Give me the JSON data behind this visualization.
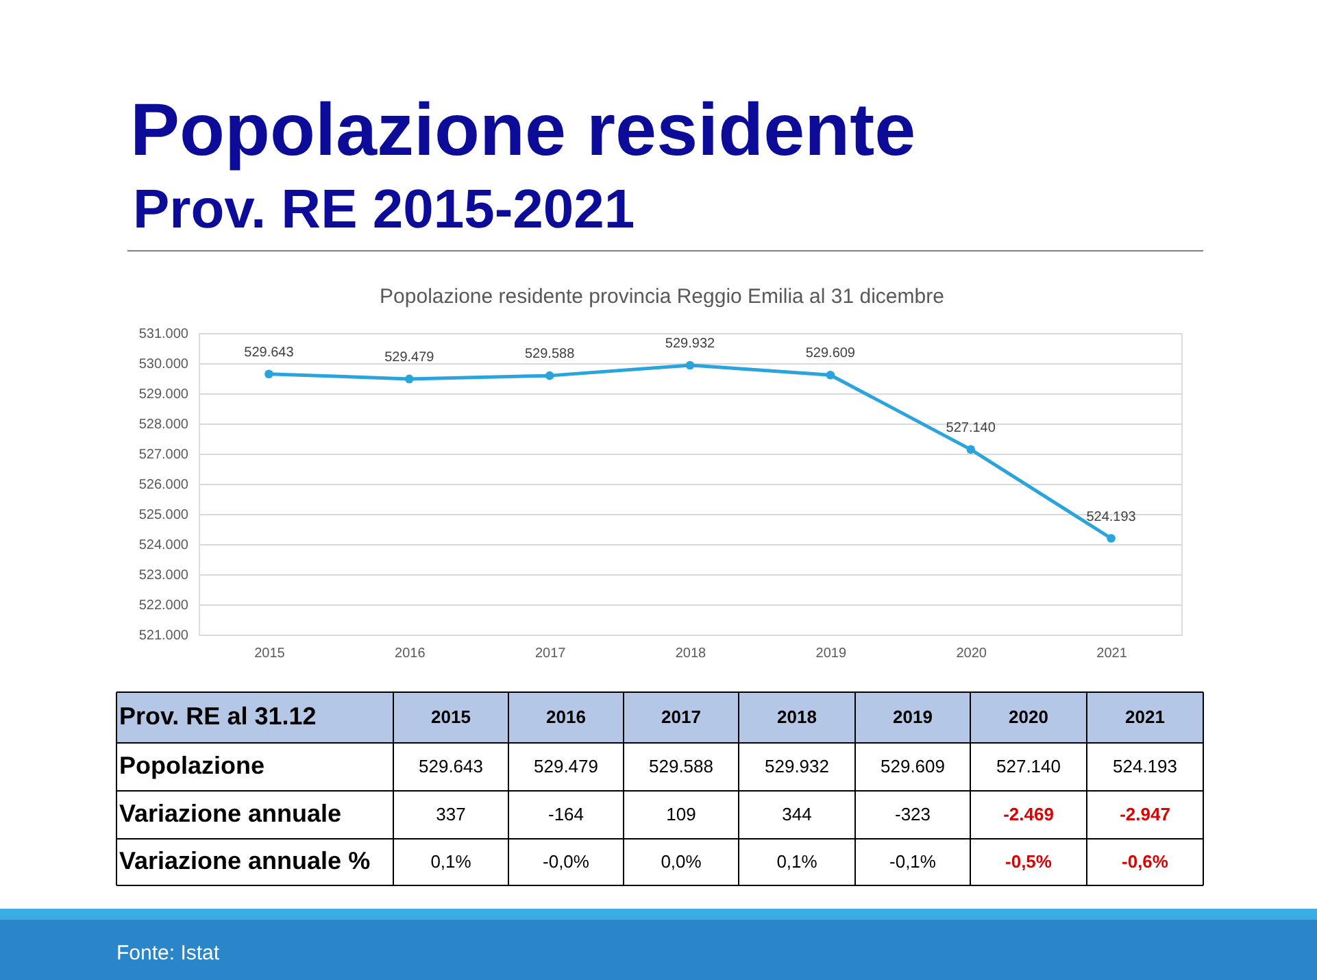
{
  "chart_data": {
    "type": "line",
    "title": "Popolazione residente",
    "subtitle": "Prov. RE  2015-2021",
    "categories": [
      "2015",
      "2016",
      "2017",
      "2018",
      "2019",
      "2020",
      "2021"
    ],
    "series": [
      {
        "color": "#2aa4dc",
        "values": [
          529643,
          529479,
          529588,
          529932,
          529609,
          527140,
          524193
        ]
      }
    ],
    "value_labels": [
      "529.643",
      "529.479",
      "529.588",
      "529.932",
      "529.609",
      "527.140",
      "524.193"
    ],
    "ylim": [
      521000,
      531000
    ],
    "yticks": [
      {
        "value": 521000,
        "label": "521.000"
      },
      {
        "value": 522000,
        "label": "522.000"
      },
      {
        "value": 523000,
        "label": "523.000"
      },
      {
        "value": 524000,
        "label": "524.000"
      },
      {
        "value": 525000,
        "label": "525.000"
      },
      {
        "value": 526000,
        "label": "526.000"
      },
      {
        "value": 527000,
        "label": "527.000"
      },
      {
        "value": 528000,
        "label": "528.000"
      },
      {
        "value": 529000,
        "label": "529.000"
      },
      {
        "value": 530000,
        "label": "530.000"
      },
      {
        "value": 531000,
        "label": "531.000"
      }
    ],
    "grid": "y",
    "marker": "circle",
    "line_style": "solid",
    "legend": false,
    "annotations": [
      "Popolazione residente provincia Reggio Emilia al 31 dicembre",
      "Prov. RE al 31.12",
      "Popolazione",
      "Variazione annuale",
      "Variazione annuale %",
      "337",
      "-164",
      "109",
      "344",
      "-323",
      "-2.469",
      "-2.947",
      "0,1%",
      "-0,0%",
      "0,0%",
      "0,1%",
      "-0,1%",
      "-0,5%",
      "-0,6%",
      "Fonte:  Istat"
    ]
  }
}
